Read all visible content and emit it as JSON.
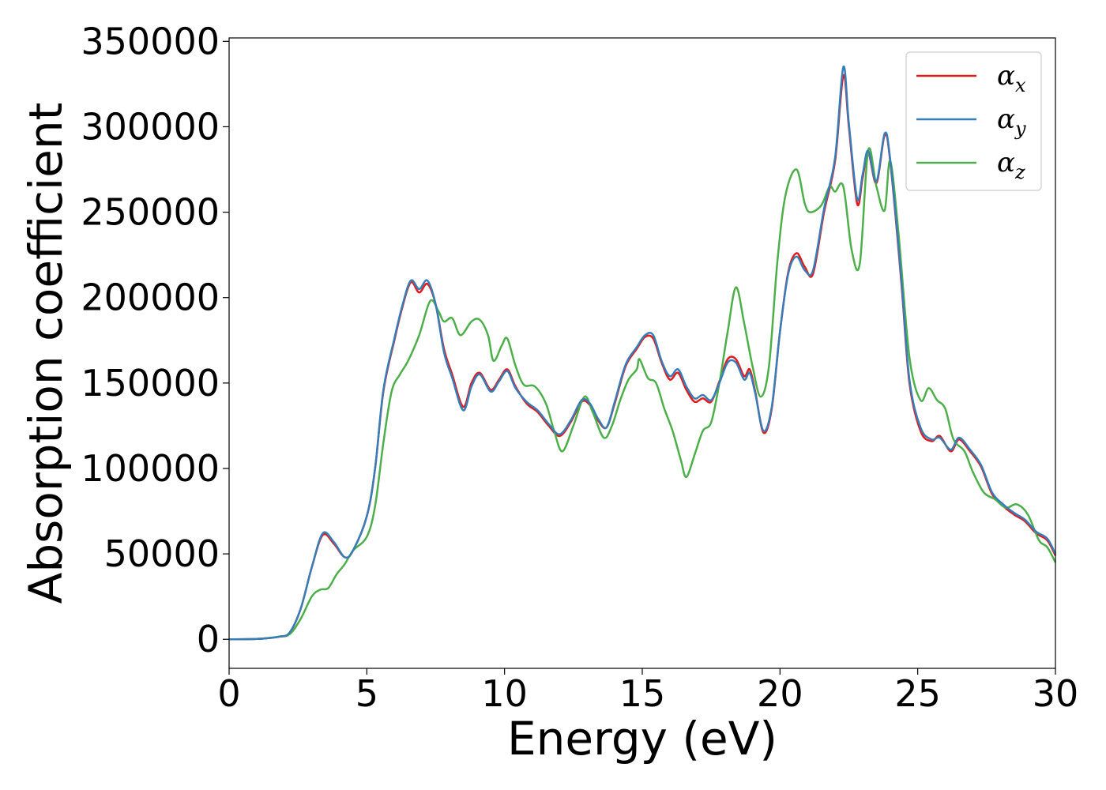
{
  "chart_data": {
    "type": "line",
    "title": "",
    "xlabel": "Energy (eV)",
    "ylabel": "Absorption coefficient",
    "xlim": [
      0,
      30
    ],
    "ylim": [
      -17000,
      352000
    ],
    "xticks": [
      0,
      5,
      10,
      15,
      20,
      25,
      30
    ],
    "xtick_labels": [
      "0",
      "5",
      "10",
      "15",
      "20",
      "25",
      "30"
    ],
    "yticks": [
      0,
      50000,
      100000,
      150000,
      200000,
      250000,
      300000,
      350000
    ],
    "ytick_labels": [
      "0",
      "50000",
      "100000",
      "150000",
      "200000",
      "250000",
      "300000",
      "350000"
    ],
    "grid": false,
    "legend_position": "top-right",
    "series": [
      {
        "name": "αx",
        "legend_base": "α",
        "legend_sub": "x",
        "color": "#e41a1c",
        "points": [
          [
            0,
            0
          ],
          [
            1,
            200
          ],
          [
            1.8,
            1500
          ],
          [
            2.2,
            4000
          ],
          [
            2.6,
            18000
          ],
          [
            3.0,
            42000
          ],
          [
            3.4,
            61000
          ],
          [
            3.8,
            56000
          ],
          [
            4.2,
            48000
          ],
          [
            4.5,
            52000
          ],
          [
            5.0,
            72000
          ],
          [
            5.3,
            100000
          ],
          [
            5.6,
            145000
          ],
          [
            6.0,
            175000
          ],
          [
            6.3,
            195000
          ],
          [
            6.6,
            209000
          ],
          [
            6.9,
            203000
          ],
          [
            7.2,
            208000
          ],
          [
            7.5,
            196000
          ],
          [
            7.8,
            170000
          ],
          [
            8.1,
            155000
          ],
          [
            8.5,
            136000
          ],
          [
            8.8,
            150000
          ],
          [
            9.1,
            156000
          ],
          [
            9.5,
            146000
          ],
          [
            9.8,
            152000
          ],
          [
            10.1,
            158000
          ],
          [
            10.4,
            148000
          ],
          [
            10.8,
            138000
          ],
          [
            11.2,
            133000
          ],
          [
            11.6,
            125000
          ],
          [
            12.0,
            119000
          ],
          [
            12.4,
            127000
          ],
          [
            12.8,
            139000
          ],
          [
            13.1,
            137000
          ],
          [
            13.4,
            128000
          ],
          [
            13.7,
            124000
          ],
          [
            14.0,
            138000
          ],
          [
            14.4,
            160000
          ],
          [
            14.8,
            170000
          ],
          [
            15.1,
            177000
          ],
          [
            15.4,
            176000
          ],
          [
            15.7,
            162000
          ],
          [
            16.0,
            152000
          ],
          [
            16.3,
            156000
          ],
          [
            16.6,
            146000
          ],
          [
            16.9,
            139000
          ],
          [
            17.2,
            141000
          ],
          [
            17.5,
            139000
          ],
          [
            17.8,
            151000
          ],
          [
            18.1,
            164000
          ],
          [
            18.4,
            164000
          ],
          [
            18.7,
            154000
          ],
          [
            18.9,
            158000
          ],
          [
            19.1,
            145000
          ],
          [
            19.4,
            121000
          ],
          [
            19.7,
            135000
          ],
          [
            20.0,
            180000
          ],
          [
            20.3,
            215000
          ],
          [
            20.6,
            226000
          ],
          [
            20.9,
            218000
          ],
          [
            21.2,
            214000
          ],
          [
            21.6,
            250000
          ],
          [
            22.0,
            280000
          ],
          [
            22.3,
            330000
          ],
          [
            22.5,
            300000
          ],
          [
            22.8,
            255000
          ],
          [
            23.0,
            270000
          ],
          [
            23.2,
            285000
          ],
          [
            23.5,
            267000
          ],
          [
            23.8,
            295000
          ],
          [
            24.0,
            280000
          ],
          [
            24.4,
            210000
          ],
          [
            24.7,
            150000
          ],
          [
            25.1,
            122000
          ],
          [
            25.5,
            116000
          ],
          [
            25.8,
            119000
          ],
          [
            26.2,
            110000
          ],
          [
            26.5,
            117000
          ],
          [
            26.9,
            110000
          ],
          [
            27.3,
            101000
          ],
          [
            27.7,
            85000
          ],
          [
            28.1,
            78000
          ],
          [
            28.5,
            73000
          ],
          [
            28.9,
            69000
          ],
          [
            29.3,
            62000
          ],
          [
            29.7,
            58000
          ],
          [
            30.0,
            49000
          ]
        ]
      },
      {
        "name": "αy",
        "legend_base": "α",
        "legend_sub": "y",
        "color": "#377eb8",
        "points": [
          [
            0,
            0
          ],
          [
            1,
            200
          ],
          [
            1.8,
            1500
          ],
          [
            2.2,
            4000
          ],
          [
            2.6,
            18000
          ],
          [
            3.0,
            42000
          ],
          [
            3.4,
            62000
          ],
          [
            3.8,
            57000
          ],
          [
            4.2,
            48000
          ],
          [
            4.5,
            52000
          ],
          [
            5.0,
            72000
          ],
          [
            5.3,
            100000
          ],
          [
            5.6,
            146000
          ],
          [
            6.0,
            176000
          ],
          [
            6.3,
            196000
          ],
          [
            6.6,
            210000
          ],
          [
            6.9,
            205000
          ],
          [
            7.2,
            210000
          ],
          [
            7.5,
            196000
          ],
          [
            7.8,
            168000
          ],
          [
            8.1,
            153000
          ],
          [
            8.5,
            134000
          ],
          [
            8.8,
            148000
          ],
          [
            9.1,
            155000
          ],
          [
            9.5,
            145000
          ],
          [
            9.8,
            151000
          ],
          [
            10.1,
            157000
          ],
          [
            10.4,
            147000
          ],
          [
            10.8,
            139000
          ],
          [
            11.2,
            134000
          ],
          [
            11.6,
            126000
          ],
          [
            12.0,
            120000
          ],
          [
            12.4,
            128000
          ],
          [
            12.8,
            140000
          ],
          [
            13.1,
            138000
          ],
          [
            13.4,
            129000
          ],
          [
            13.7,
            124000
          ],
          [
            14.0,
            139000
          ],
          [
            14.4,
            161000
          ],
          [
            14.8,
            171000
          ],
          [
            15.1,
            178000
          ],
          [
            15.4,
            178000
          ],
          [
            15.7,
            163000
          ],
          [
            16.0,
            154000
          ],
          [
            16.3,
            158000
          ],
          [
            16.6,
            148000
          ],
          [
            16.9,
            141000
          ],
          [
            17.2,
            143000
          ],
          [
            17.5,
            140000
          ],
          [
            17.8,
            150000
          ],
          [
            18.1,
            162000
          ],
          [
            18.4,
            162000
          ],
          [
            18.7,
            152000
          ],
          [
            18.9,
            156000
          ],
          [
            19.1,
            144000
          ],
          [
            19.4,
            122000
          ],
          [
            19.7,
            136000
          ],
          [
            20.0,
            180000
          ],
          [
            20.3,
            214000
          ],
          [
            20.6,
            224000
          ],
          [
            20.9,
            216000
          ],
          [
            21.2,
            216000
          ],
          [
            21.6,
            252000
          ],
          [
            22.0,
            282000
          ],
          [
            22.3,
            335000
          ],
          [
            22.5,
            302000
          ],
          [
            22.8,
            258000
          ],
          [
            23.0,
            272000
          ],
          [
            23.2,
            286000
          ],
          [
            23.5,
            268000
          ],
          [
            23.8,
            296000
          ],
          [
            24.0,
            281000
          ],
          [
            24.4,
            212000
          ],
          [
            24.7,
            152000
          ],
          [
            25.1,
            124000
          ],
          [
            25.5,
            117000
          ],
          [
            25.8,
            118000
          ],
          [
            26.2,
            111000
          ],
          [
            26.5,
            118000
          ],
          [
            26.9,
            111000
          ],
          [
            27.3,
            102000
          ],
          [
            27.7,
            86000
          ],
          [
            28.1,
            79000
          ],
          [
            28.5,
            74000
          ],
          [
            28.9,
            70000
          ],
          [
            29.3,
            63000
          ],
          [
            29.7,
            59000
          ],
          [
            30.0,
            50000
          ]
        ]
      },
      {
        "name": "αz",
        "legend_base": "α",
        "legend_sub": "z",
        "color": "#4daf4a",
        "points": [
          [
            0,
            0
          ],
          [
            1,
            200
          ],
          [
            1.8,
            1500
          ],
          [
            2.2,
            3000
          ],
          [
            2.6,
            12000
          ],
          [
            3.0,
            25000
          ],
          [
            3.3,
            29000
          ],
          [
            3.6,
            30000
          ],
          [
            3.9,
            38000
          ],
          [
            4.2,
            44000
          ],
          [
            4.5,
            52000
          ],
          [
            5.0,
            60000
          ],
          [
            5.3,
            78000
          ],
          [
            5.6,
            115000
          ],
          [
            5.9,
            145000
          ],
          [
            6.2,
            155000
          ],
          [
            6.5,
            163000
          ],
          [
            6.9,
            178000
          ],
          [
            7.3,
            198000
          ],
          [
            7.6,
            192000
          ],
          [
            7.8,
            186000
          ],
          [
            8.1,
            188000
          ],
          [
            8.4,
            178000
          ],
          [
            8.8,
            186000
          ],
          [
            9.1,
            187000
          ],
          [
            9.4,
            178000
          ],
          [
            9.6,
            163000
          ],
          [
            9.9,
            172000
          ],
          [
            10.1,
            176000
          ],
          [
            10.4,
            160000
          ],
          [
            10.7,
            149000
          ],
          [
            11.1,
            148000
          ],
          [
            11.5,
            138000
          ],
          [
            11.8,
            122000
          ],
          [
            12.1,
            110000
          ],
          [
            12.5,
            125000
          ],
          [
            12.9,
            142000
          ],
          [
            13.2,
            133000
          ],
          [
            13.6,
            118000
          ],
          [
            13.9,
            125000
          ],
          [
            14.2,
            140000
          ],
          [
            14.5,
            152000
          ],
          [
            14.8,
            158000
          ],
          [
            14.9,
            164000
          ],
          [
            15.2,
            153000
          ],
          [
            15.5,
            150000
          ],
          [
            15.8,
            135000
          ],
          [
            16.1,
            122000
          ],
          [
            16.4,
            105000
          ],
          [
            16.6,
            95000
          ],
          [
            16.9,
            108000
          ],
          [
            17.2,
            122000
          ],
          [
            17.5,
            127000
          ],
          [
            17.8,
            150000
          ],
          [
            18.1,
            180000
          ],
          [
            18.4,
            206000
          ],
          [
            18.7,
            185000
          ],
          [
            19.0,
            160000
          ],
          [
            19.3,
            142000
          ],
          [
            19.6,
            160000
          ],
          [
            19.9,
            220000
          ],
          [
            20.2,
            260000
          ],
          [
            20.6,
            275000
          ],
          [
            20.9,
            255000
          ],
          [
            21.1,
            250000
          ],
          [
            21.5,
            254000
          ],
          [
            21.8,
            265000
          ],
          [
            22.0,
            262000
          ],
          [
            22.3,
            265000
          ],
          [
            22.6,
            228000
          ],
          [
            22.9,
            220000
          ],
          [
            23.2,
            286000
          ],
          [
            23.5,
            265000
          ],
          [
            23.8,
            251000
          ],
          [
            24.0,
            280000
          ],
          [
            24.3,
            238000
          ],
          [
            24.7,
            165000
          ],
          [
            25.1,
            140000
          ],
          [
            25.4,
            147000
          ],
          [
            25.7,
            140000
          ],
          [
            26.0,
            135000
          ],
          [
            26.3,
            117000
          ],
          [
            26.7,
            110000
          ],
          [
            27.0,
            98000
          ],
          [
            27.4,
            86000
          ],
          [
            27.8,
            82000
          ],
          [
            28.2,
            77000
          ],
          [
            28.6,
            79000
          ],
          [
            29.0,
            73000
          ],
          [
            29.4,
            58000
          ],
          [
            29.7,
            54000
          ],
          [
            30.0,
            45000
          ]
        ]
      }
    ]
  }
}
